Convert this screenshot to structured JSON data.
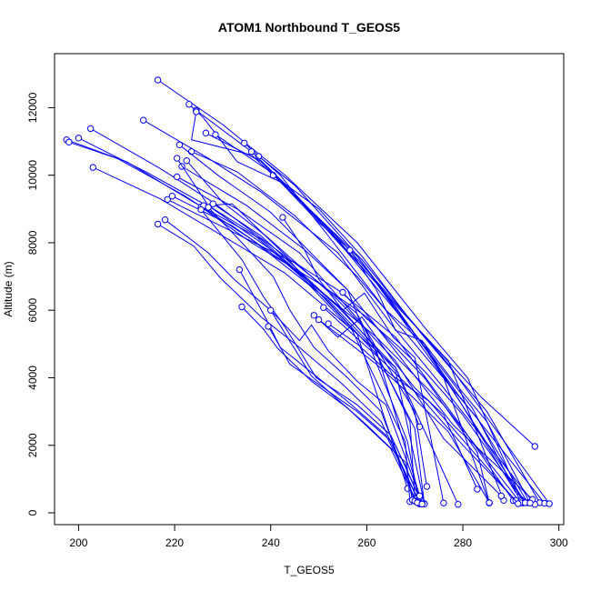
{
  "chart_data": {
    "type": "line",
    "title": "ATOM1 Northbound T_GEOS5",
    "xlabel": "T_GEOS5",
    "ylabel": "Altitude (m)",
    "xlim": [
      195,
      301
    ],
    "ylim": [
      -350,
      13600
    ],
    "x_ticks": [
      200,
      220,
      240,
      260,
      280,
      300
    ],
    "y_ticks": [
      0,
      2000,
      4000,
      6000,
      8000,
      10000,
      12000
    ],
    "x_tick_labels": [
      "200",
      "220",
      "240",
      "260",
      "280",
      "300"
    ],
    "y_tick_labels": [
      "0",
      "2000",
      "4000",
      "6000",
      "8000",
      "10000",
      "12000"
    ],
    "grid": false,
    "legend": "none",
    "colors": {
      "series": "#0000ff",
      "axis": "#000000",
      "background": "#ffffff"
    },
    "series": [
      {
        "points": [
          [
            216.5,
            12820
          ],
          [
            230,
            11500
          ],
          [
            243,
            10000
          ],
          [
            258,
            8000
          ],
          [
            272,
            5500
          ],
          [
            281,
            4000
          ],
          [
            292.5,
            290
          ]
        ]
      },
      {
        "points": [
          [
            224.5,
            11920
          ],
          [
            236,
            10700
          ],
          [
            244,
            9600
          ],
          [
            252,
            8400
          ],
          [
            267,
            6000
          ],
          [
            277,
            4500
          ],
          [
            288.5,
            370
          ]
        ]
      },
      {
        "points": [
          [
            223,
            12100
          ],
          [
            226,
            11700
          ],
          [
            233,
            10400
          ],
          [
            242,
            9800
          ],
          [
            255,
            8000
          ],
          [
            271,
            5400
          ],
          [
            284,
            3400
          ],
          [
            295,
            1970
          ]
        ]
      },
      {
        "points": [
          [
            224.5,
            11880
          ],
          [
            223.5,
            11050
          ],
          [
            236,
            10600
          ],
          [
            248,
            9000
          ],
          [
            259,
            7500
          ],
          [
            272,
            5200
          ],
          [
            285,
            3000
          ],
          [
            296,
            300
          ]
        ]
      },
      {
        "points": [
          [
            226.5,
            11250
          ],
          [
            238,
            10400
          ],
          [
            250,
            8600
          ],
          [
            258,
            7600
          ],
          [
            272.5,
            4800
          ],
          [
            293,
            310
          ]
        ]
      },
      {
        "points": [
          [
            228.5,
            11200
          ],
          [
            241,
            10000
          ],
          [
            253,
            8200
          ],
          [
            262,
            6800
          ],
          [
            276,
            4000
          ],
          [
            285.5,
            290
          ]
        ]
      },
      {
        "points": [
          [
            234.5,
            10950
          ],
          [
            242,
            10000
          ],
          [
            252,
            8200
          ],
          [
            264,
            6000
          ],
          [
            272,
            5000
          ],
          [
            291,
            600
          ],
          [
            294,
            300
          ]
        ]
      },
      {
        "points": [
          [
            237.5,
            10560
          ],
          [
            245,
            9700
          ],
          [
            257,
            7800
          ],
          [
            266,
            6100
          ],
          [
            279,
            3500
          ],
          [
            297,
            280
          ]
        ]
      },
      {
        "points": [
          [
            240.5,
            10000
          ],
          [
            250,
            9000
          ],
          [
            259,
            7600
          ],
          [
            268,
            5900
          ],
          [
            277,
            4400
          ],
          [
            298,
            270
          ]
        ]
      },
      {
        "points": [
          [
            236,
            10700
          ],
          [
            244,
            9600
          ],
          [
            256,
            7700
          ],
          [
            270,
            5300
          ],
          [
            282,
            3100
          ],
          [
            292,
            350
          ]
        ]
      },
      {
        "points": [
          [
            213.5,
            11630
          ],
          [
            227,
            10500
          ],
          [
            238,
            9500
          ],
          [
            254,
            7700
          ],
          [
            265,
            5600
          ],
          [
            276,
            3700
          ],
          [
            295,
            250
          ]
        ]
      },
      {
        "points": [
          [
            223.5,
            10700
          ],
          [
            233,
            10100
          ],
          [
            245,
            8800
          ],
          [
            258,
            7000
          ],
          [
            270,
            5000
          ],
          [
            283,
            2800
          ],
          [
            293.5,
            300
          ]
        ]
      },
      {
        "points": [
          [
            221,
            10900
          ],
          [
            229,
            10000
          ],
          [
            240,
            8900
          ],
          [
            256,
            6600
          ],
          [
            267,
            4600
          ],
          [
            278,
            2600
          ],
          [
            294.5,
            400
          ]
        ]
      },
      {
        "points": [
          [
            202.5,
            11380
          ],
          [
            217,
            10200
          ],
          [
            228,
            9200
          ],
          [
            243,
            7600
          ],
          [
            258,
            5300
          ],
          [
            266,
            4300
          ],
          [
            271,
            2550
          ]
        ]
      },
      {
        "points": [
          [
            197.5,
            11050
          ],
          [
            208,
            10500
          ],
          [
            222,
            9400
          ],
          [
            236,
            8100
          ],
          [
            252,
            6300
          ],
          [
            262,
            4800
          ],
          [
            271.5,
            260
          ]
        ]
      },
      {
        "points": [
          [
            198,
            10980
          ],
          [
            210,
            10400
          ],
          [
            224,
            9200
          ],
          [
            238,
            8100
          ],
          [
            254,
            6100
          ],
          [
            266,
            4300
          ],
          [
            279,
            250
          ]
        ]
      },
      {
        "points": [
          [
            200,
            11100
          ],
          [
            214,
            10100
          ],
          [
            228,
            9000
          ],
          [
            240,
            7800
          ],
          [
            255,
            6000
          ],
          [
            266,
            4200
          ],
          [
            272,
            270
          ]
        ]
      },
      {
        "points": [
          [
            203,
            10230
          ],
          [
            217,
            9300
          ],
          [
            230,
            8200
          ],
          [
            243,
            7100
          ],
          [
            258,
            5300
          ],
          [
            268.5,
            720
          ]
        ]
      },
      {
        "points": [
          [
            218.5,
            9280
          ],
          [
            231,
            8400
          ],
          [
            245,
            7400
          ],
          [
            258,
            5900
          ],
          [
            269,
            2700
          ],
          [
            270,
            420
          ]
        ]
      },
      {
        "points": [
          [
            219.5,
            9380
          ],
          [
            232,
            8500
          ],
          [
            245,
            7200
          ],
          [
            257,
            5400
          ],
          [
            268,
            2100
          ],
          [
            269,
            330
          ]
        ]
      },
      {
        "points": [
          [
            220.5,
            9950
          ],
          [
            233,
            9000
          ],
          [
            246,
            7700
          ],
          [
            259,
            5600
          ],
          [
            270,
            3000
          ],
          [
            272.5,
            780
          ]
        ]
      },
      {
        "points": [
          [
            221.5,
            10260
          ],
          [
            235,
            9100
          ],
          [
            247,
            7800
          ],
          [
            256,
            6600
          ],
          [
            268.5,
            2100
          ],
          [
            271,
            260
          ]
        ]
      },
      {
        "points": [
          [
            220.5,
            10500
          ],
          [
            227,
            9100
          ],
          [
            236,
            8300
          ],
          [
            251,
            6400
          ],
          [
            262,
            4700
          ],
          [
            270,
            2500
          ],
          [
            272,
            260
          ]
        ]
      },
      {
        "points": [
          [
            222.5,
            10430
          ],
          [
            230,
            9200
          ],
          [
            239,
            8200
          ],
          [
            254,
            6300
          ],
          [
            266,
            4500
          ],
          [
            276,
            2200
          ],
          [
            288,
            500
          ]
        ]
      },
      {
        "points": [
          [
            225.5,
            9060
          ],
          [
            236,
            8000
          ],
          [
            250,
            6800
          ],
          [
            260,
            5800
          ],
          [
            272,
            4000
          ],
          [
            283,
            1800
          ],
          [
            285.5,
            300
          ]
        ]
      },
      {
        "points": [
          [
            226,
            9100
          ],
          [
            232,
            9150
          ],
          [
            244,
            7500
          ],
          [
            254,
            6600
          ],
          [
            266,
            5200
          ],
          [
            279,
            2700
          ],
          [
            290.5,
            360
          ]
        ]
      },
      {
        "points": [
          [
            228,
            9150
          ],
          [
            238,
            8200
          ],
          [
            251,
            6500
          ],
          [
            262,
            5200
          ],
          [
            276,
            3200
          ],
          [
            292,
            300
          ]
        ]
      },
      {
        "points": [
          [
            216.5,
            8550
          ],
          [
            224,
            7900
          ],
          [
            229.5,
            6960
          ],
          [
            238,
            5800
          ],
          [
            246,
            4900
          ],
          [
            255,
            3800
          ],
          [
            263,
            2700
          ],
          [
            270,
            600
          ],
          [
            271.5,
            270
          ]
        ]
      },
      {
        "points": [
          [
            218,
            8680
          ],
          [
            227,
            7700
          ],
          [
            232.5,
            6900
          ],
          [
            240,
            6000
          ],
          [
            248.5,
            4050
          ],
          [
            252,
            3600
          ],
          [
            260,
            2600
          ],
          [
            268,
            1500
          ],
          [
            269.5,
            380
          ]
        ]
      },
      {
        "points": [
          [
            225.5,
            8980
          ],
          [
            234,
            7500
          ],
          [
            238.5,
            6400
          ],
          [
            243,
            5500
          ],
          [
            249.5,
            4000
          ],
          [
            258,
            3200
          ],
          [
            265,
            2300
          ],
          [
            271,
            450
          ]
        ]
      },
      {
        "points": [
          [
            227,
            9050
          ],
          [
            234,
            8000
          ],
          [
            240.5,
            7000
          ],
          [
            244,
            6000
          ],
          [
            249,
            4900
          ],
          [
            256,
            4000
          ],
          [
            263,
            3000
          ],
          [
            270,
            350
          ]
        ]
      },
      {
        "points": [
          [
            242.5,
            8750
          ],
          [
            247,
            7800
          ],
          [
            250,
            6920
          ],
          [
            255,
            6000
          ],
          [
            259.5,
            6510
          ],
          [
            265.5,
            5200
          ],
          [
            270,
            4600
          ],
          [
            276,
            290
          ]
        ]
      },
      {
        "points": [
          [
            233.5,
            7200
          ],
          [
            239,
            5750
          ],
          [
            242,
            4900
          ],
          [
            249,
            4100
          ],
          [
            256,
            3300
          ],
          [
            264,
            2300
          ],
          [
            271,
            300
          ]
        ]
      },
      {
        "points": [
          [
            234,
            6100
          ],
          [
            238.5,
            5440
          ],
          [
            241.5,
            4860
          ],
          [
            248.5,
            3900
          ],
          [
            256,
            3100
          ],
          [
            265,
            1900
          ],
          [
            270.5,
            300
          ]
        ]
      },
      {
        "points": [
          [
            239.5,
            5520
          ],
          [
            244,
            4400
          ],
          [
            250,
            3800
          ],
          [
            258,
            3000
          ],
          [
            266,
            2000
          ],
          [
            271.5,
            260
          ]
        ]
      },
      {
        "points": [
          [
            240,
            6000
          ],
          [
            246,
            5100
          ],
          [
            248.5,
            5560
          ],
          [
            252,
            4800
          ],
          [
            258,
            3900
          ],
          [
            264,
            3200
          ],
          [
            271,
            500
          ]
        ]
      },
      {
        "points": [
          [
            249,
            5850
          ],
          [
            254,
            5200
          ],
          [
            259,
            5800
          ],
          [
            265,
            4600
          ],
          [
            270,
            3700
          ],
          [
            276,
            2900
          ],
          [
            283,
            700
          ]
        ]
      },
      {
        "points": [
          [
            250,
            5720
          ],
          [
            254.5,
            5230
          ],
          [
            262,
            4400
          ],
          [
            269,
            3500
          ],
          [
            277,
            2400
          ],
          [
            285.5,
            300
          ]
        ]
      },
      {
        "points": [
          [
            251,
            6080
          ],
          [
            257,
            5300
          ],
          [
            264,
            4400
          ],
          [
            272,
            3300
          ],
          [
            280,
            2000
          ],
          [
            291,
            370
          ]
        ]
      },
      {
        "points": [
          [
            255,
            6530
          ],
          [
            259.5,
            5810
          ],
          [
            266,
            5000
          ],
          [
            272,
            4200
          ],
          [
            280,
            2900
          ],
          [
            293,
            300
          ]
        ]
      },
      {
        "points": [
          [
            256.5,
            7780
          ],
          [
            262,
            6600
          ],
          [
            266,
            5400
          ],
          [
            271.5,
            5100
          ],
          [
            278,
            3900
          ],
          [
            285,
            2700
          ],
          [
            294,
            290
          ]
        ]
      },
      {
        "points": [
          [
            252,
            5600
          ],
          [
            258,
            5000
          ],
          [
            265,
            4100
          ],
          [
            273,
            3300
          ],
          [
            281,
            2000
          ],
          [
            291.5,
            270
          ]
        ]
      }
    ]
  }
}
